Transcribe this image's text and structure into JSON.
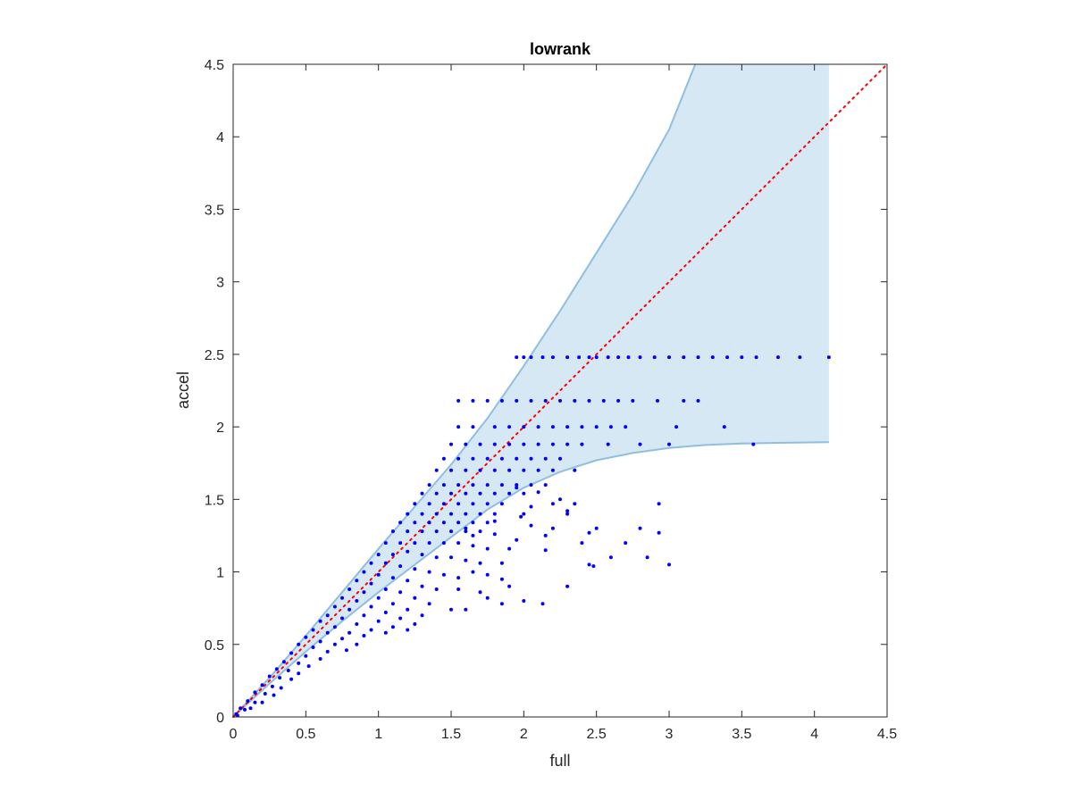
{
  "chart_data": {
    "type": "scatter",
    "title": "lowrank",
    "xlabel": "full",
    "ylabel": "accel",
    "xlim": [
      0,
      4.5
    ],
    "ylim": [
      0,
      4.5
    ],
    "xticks": [
      "0",
      "0.5",
      "1",
      "1.5",
      "2",
      "2.5",
      "3",
      "3.5",
      "4",
      "4.5"
    ],
    "yticks": [
      "0",
      "0.5",
      "1",
      "1.5",
      "2",
      "2.5",
      "3",
      "3.5",
      "4",
      "4.5"
    ],
    "grid": false,
    "box": true,
    "colors": {
      "points": "#0000ff",
      "band_fill": "#d6e8f4",
      "band_edge": "#8fbfe0",
      "reference_line": "#ff0000",
      "axes": "#262626"
    },
    "reference_line": {
      "style": "dotted",
      "points": [
        [
          0,
          0
        ],
        [
          4.5,
          4.5
        ]
      ]
    },
    "band": {
      "upper": [
        [
          0,
          0
        ],
        [
          0.25,
          0.27
        ],
        [
          0.5,
          0.56
        ],
        [
          0.75,
          0.86
        ],
        [
          1.0,
          1.16
        ],
        [
          1.25,
          1.45
        ],
        [
          1.5,
          1.74
        ],
        [
          1.75,
          2.06
        ],
        [
          2.0,
          2.42
        ],
        [
          2.25,
          2.8
        ],
        [
          2.5,
          3.2
        ],
        [
          2.75,
          3.6
        ],
        [
          3.0,
          4.05
        ],
        [
          3.18,
          4.5
        ],
        [
          4.1,
          4.5
        ]
      ],
      "lower": [
        [
          0,
          0
        ],
        [
          0.25,
          0.23
        ],
        [
          0.5,
          0.45
        ],
        [
          0.75,
          0.66
        ],
        [
          1.0,
          0.86
        ],
        [
          1.25,
          1.05
        ],
        [
          1.5,
          1.24
        ],
        [
          1.75,
          1.43
        ],
        [
          2.0,
          1.58
        ],
        [
          2.25,
          1.69
        ],
        [
          2.5,
          1.77
        ],
        [
          2.75,
          1.82
        ],
        [
          3.0,
          1.855
        ],
        [
          3.25,
          1.875
        ],
        [
          3.5,
          1.885
        ],
        [
          3.75,
          1.89
        ],
        [
          4.1,
          1.895
        ]
      ]
    },
    "series": [
      {
        "values": [
          [
            1.95,
            2.48
          ],
          [
            2.0,
            2.48
          ],
          [
            2.05,
            2.48
          ],
          [
            2.13,
            2.48
          ],
          [
            2.2,
            2.48
          ],
          [
            2.3,
            2.48
          ],
          [
            2.38,
            2.48
          ],
          [
            2.45,
            2.48
          ],
          [
            2.5,
            2.48
          ],
          [
            2.58,
            2.48
          ],
          [
            2.65,
            2.48
          ],
          [
            2.72,
            2.48
          ],
          [
            2.8,
            2.48
          ],
          [
            2.9,
            2.48
          ],
          [
            3.0,
            2.48
          ],
          [
            3.1,
            2.48
          ],
          [
            3.2,
            2.48
          ],
          [
            3.3,
            2.48
          ],
          [
            3.4,
            2.48
          ],
          [
            3.5,
            2.48
          ],
          [
            3.6,
            2.48
          ],
          [
            3.75,
            2.48
          ],
          [
            3.9,
            2.48
          ],
          [
            4.1,
            2.48
          ],
          [
            1.55,
            2.18
          ],
          [
            1.65,
            2.18
          ],
          [
            1.75,
            2.18
          ],
          [
            1.85,
            2.18
          ],
          [
            1.95,
            2.18
          ],
          [
            2.05,
            2.18
          ],
          [
            2.15,
            2.18
          ],
          [
            2.25,
            2.18
          ],
          [
            2.35,
            2.18
          ],
          [
            2.45,
            2.18
          ],
          [
            2.55,
            2.18
          ],
          [
            2.65,
            2.18
          ],
          [
            2.75,
            2.18
          ],
          [
            2.92,
            2.18
          ],
          [
            3.1,
            2.18
          ],
          [
            3.2,
            2.18
          ],
          [
            1.55,
            2.0
          ],
          [
            1.65,
            2.0
          ],
          [
            1.8,
            2.0
          ],
          [
            1.9,
            2.0
          ],
          [
            2.0,
            2.0
          ],
          [
            2.1,
            2.0
          ],
          [
            2.2,
            2.0
          ],
          [
            2.3,
            2.0
          ],
          [
            2.4,
            2.0
          ],
          [
            2.5,
            2.0
          ],
          [
            2.6,
            2.0
          ],
          [
            2.7,
            2.0
          ],
          [
            3.05,
            2.0
          ],
          [
            3.38,
            2.0
          ],
          [
            1.5,
            1.88
          ],
          [
            1.6,
            1.88
          ],
          [
            1.7,
            1.88
          ],
          [
            1.8,
            1.88
          ],
          [
            1.9,
            1.88
          ],
          [
            2.0,
            1.88
          ],
          [
            2.1,
            1.88
          ],
          [
            2.2,
            1.88
          ],
          [
            2.3,
            1.88
          ],
          [
            2.4,
            1.88
          ],
          [
            2.58,
            1.88
          ],
          [
            2.8,
            1.88
          ],
          [
            3.0,
            1.88
          ],
          [
            3.58,
            1.88
          ],
          [
            1.45,
            1.78
          ],
          [
            1.55,
            1.78
          ],
          [
            1.65,
            1.78
          ],
          [
            1.75,
            1.78
          ],
          [
            1.85,
            1.78
          ],
          [
            1.95,
            1.78
          ],
          [
            2.05,
            1.78
          ],
          [
            2.15,
            1.78
          ],
          [
            2.25,
            1.78
          ],
          [
            1.4,
            1.7
          ],
          [
            1.5,
            1.7
          ],
          [
            1.6,
            1.7
          ],
          [
            1.7,
            1.7
          ],
          [
            1.8,
            1.7
          ],
          [
            1.9,
            1.7
          ],
          [
            2.0,
            1.7
          ],
          [
            2.1,
            1.7
          ],
          [
            2.2,
            1.7
          ],
          [
            2.35,
            1.7
          ],
          [
            1.35,
            1.6
          ],
          [
            1.45,
            1.6
          ],
          [
            1.55,
            1.6
          ],
          [
            1.65,
            1.6
          ],
          [
            1.75,
            1.6
          ],
          [
            1.85,
            1.6
          ],
          [
            1.95,
            1.6
          ],
          [
            2.05,
            1.6
          ],
          [
            2.15,
            1.6
          ],
          [
            1.3,
            1.54
          ],
          [
            1.4,
            1.54
          ],
          [
            1.5,
            1.54
          ],
          [
            1.6,
            1.54
          ],
          [
            1.7,
            1.54
          ],
          [
            1.8,
            1.54
          ],
          [
            1.9,
            1.54
          ],
          [
            2.0,
            1.54
          ],
          [
            1.25,
            1.47
          ],
          [
            1.35,
            1.47
          ],
          [
            1.45,
            1.47
          ],
          [
            1.55,
            1.47
          ],
          [
            1.65,
            1.47
          ],
          [
            1.75,
            1.47
          ],
          [
            1.85,
            1.47
          ],
          [
            2.2,
            1.47
          ],
          [
            2.35,
            1.47
          ],
          [
            2.93,
            1.47
          ],
          [
            1.2,
            1.4
          ],
          [
            1.3,
            1.4
          ],
          [
            1.4,
            1.4
          ],
          [
            1.5,
            1.4
          ],
          [
            1.6,
            1.4
          ],
          [
            1.7,
            1.4
          ],
          [
            1.8,
            1.4
          ],
          [
            2.0,
            1.4
          ],
          [
            2.3,
            1.4
          ],
          [
            1.15,
            1.34
          ],
          [
            1.25,
            1.34
          ],
          [
            1.35,
            1.34
          ],
          [
            1.45,
            1.34
          ],
          [
            1.55,
            1.34
          ],
          [
            1.65,
            1.34
          ],
          [
            1.75,
            1.34
          ],
          [
            2.05,
            1.32
          ],
          [
            2.2,
            1.3
          ],
          [
            2.45,
            1.27
          ],
          [
            2.93,
            1.27
          ],
          [
            1.1,
            1.28
          ],
          [
            1.2,
            1.28
          ],
          [
            1.3,
            1.28
          ],
          [
            1.4,
            1.28
          ],
          [
            1.5,
            1.28
          ],
          [
            1.6,
            1.28
          ],
          [
            1.7,
            1.28
          ],
          [
            1.8,
            1.26
          ],
          [
            1.95,
            1.22
          ],
          [
            1.05,
            1.2
          ],
          [
            1.15,
            1.2
          ],
          [
            1.25,
            1.2
          ],
          [
            1.35,
            1.2
          ],
          [
            1.45,
            1.2
          ],
          [
            1.55,
            1.2
          ],
          [
            1.65,
            1.18
          ],
          [
            1.75,
            1.16
          ],
          [
            1.9,
            1.16
          ],
          [
            1.0,
            1.12
          ],
          [
            1.1,
            1.12
          ],
          [
            1.2,
            1.14
          ],
          [
            1.3,
            1.12
          ],
          [
            1.4,
            1.1
          ],
          [
            1.5,
            1.1
          ],
          [
            1.6,
            1.08
          ],
          [
            1.7,
            1.06
          ],
          [
            1.85,
            1.06
          ],
          [
            0.95,
            1.06
          ],
          [
            1.05,
            1.06
          ],
          [
            1.15,
            1.04
          ],
          [
            1.25,
            1.02
          ],
          [
            1.35,
            1.0
          ],
          [
            1.45,
            0.98
          ],
          [
            1.55,
            0.96
          ],
          [
            1.65,
            1.0
          ],
          [
            1.75,
            0.98
          ],
          [
            1.85,
            0.95
          ],
          [
            2.48,
            1.04
          ],
          [
            2.45,
            1.05
          ],
          [
            0.9,
            1.0
          ],
          [
            1.0,
            0.98
          ],
          [
            1.1,
            0.96
          ],
          [
            1.2,
            0.94
          ],
          [
            1.3,
            0.9
          ],
          [
            1.4,
            0.88
          ],
          [
            1.55,
            0.88
          ],
          [
            1.7,
            0.86
          ],
          [
            1.9,
            0.9
          ],
          [
            2.3,
            0.9
          ],
          [
            0.85,
            0.94
          ],
          [
            0.95,
            0.92
          ],
          [
            1.05,
            0.88
          ],
          [
            1.15,
            0.86
          ],
          [
            1.25,
            0.82
          ],
          [
            1.35,
            0.78
          ],
          [
            1.5,
            0.74
          ],
          [
            1.85,
            0.78
          ],
          [
            2.13,
            0.78
          ],
          [
            0.8,
            0.88
          ],
          [
            0.9,
            0.86
          ],
          [
            1.0,
            0.82
          ],
          [
            1.1,
            0.78
          ],
          [
            1.2,
            0.74
          ],
          [
            1.3,
            0.7
          ],
          [
            1.6,
            0.74
          ],
          [
            1.75,
            0.82
          ],
          [
            2.0,
            0.8
          ],
          [
            0.75,
            0.82
          ],
          [
            0.85,
            0.8
          ],
          [
            0.95,
            0.76
          ],
          [
            1.05,
            0.72
          ],
          [
            1.15,
            0.68
          ],
          [
            1.25,
            0.64
          ],
          [
            0.7,
            0.76
          ],
          [
            0.8,
            0.74
          ],
          [
            0.9,
            0.7
          ],
          [
            1.0,
            0.66
          ],
          [
            1.1,
            0.62
          ],
          [
            1.2,
            0.6
          ],
          [
            0.65,
            0.7
          ],
          [
            0.75,
            0.68
          ],
          [
            0.85,
            0.64
          ],
          [
            0.95,
            0.6
          ],
          [
            1.05,
            0.58
          ],
          [
            0.6,
            0.66
          ],
          [
            0.7,
            0.62
          ],
          [
            0.8,
            0.58
          ],
          [
            0.9,
            0.56
          ],
          [
            0.55,
            0.6
          ],
          [
            0.65,
            0.58
          ],
          [
            0.75,
            0.54
          ],
          [
            0.85,
            0.5
          ],
          [
            0.5,
            0.55
          ],
          [
            0.6,
            0.52
          ],
          [
            0.7,
            0.5
          ],
          [
            0.78,
            0.46
          ],
          [
            0.45,
            0.5
          ],
          [
            0.55,
            0.48
          ],
          [
            0.65,
            0.45
          ],
          [
            0.4,
            0.44
          ],
          [
            0.5,
            0.42
          ],
          [
            0.6,
            0.4
          ],
          [
            0.35,
            0.38
          ],
          [
            0.45,
            0.37
          ],
          [
            0.52,
            0.35
          ],
          [
            0.3,
            0.33
          ],
          [
            0.38,
            0.32
          ],
          [
            0.45,
            0.3
          ],
          [
            0.25,
            0.28
          ],
          [
            0.32,
            0.27
          ],
          [
            0.4,
            0.26
          ],
          [
            0.2,
            0.22
          ],
          [
            0.27,
            0.21
          ],
          [
            0.33,
            0.2
          ],
          [
            0.15,
            0.17
          ],
          [
            0.22,
            0.16
          ],
          [
            0.28,
            0.15
          ],
          [
            0.1,
            0.11
          ],
          [
            0.15,
            0.1
          ],
          [
            0.2,
            0.1
          ],
          [
            0.05,
            0.06
          ],
          [
            0.08,
            0.05
          ],
          [
            0.12,
            0.06
          ],
          [
            0.02,
            0.02
          ],
          [
            0.03,
            0.01
          ],
          [
            1.95,
            1.58
          ],
          [
            2.1,
            1.55
          ],
          [
            2.05,
            1.45
          ],
          [
            1.98,
            1.38
          ],
          [
            2.25,
            1.5
          ],
          [
            2.3,
            1.42
          ],
          [
            2.5,
            1.3
          ],
          [
            2.7,
            1.2
          ],
          [
            2.85,
            1.1
          ],
          [
            3.0,
            1.05
          ],
          [
            2.6,
            1.1
          ],
          [
            2.8,
            1.3
          ],
          [
            1.6,
            1.3
          ],
          [
            1.65,
            1.25
          ],
          [
            1.8,
            1.35
          ],
          [
            2.15,
            1.25
          ],
          [
            2.15,
            1.15
          ],
          [
            2.4,
            1.2
          ]
        ]
      }
    ]
  }
}
